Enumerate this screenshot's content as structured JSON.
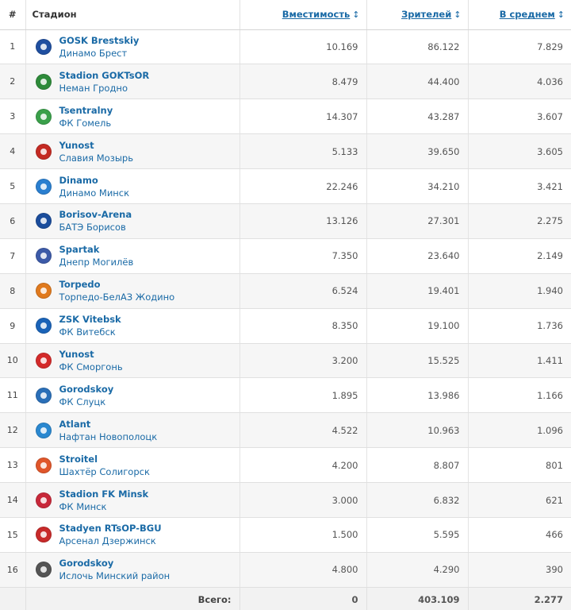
{
  "header": {
    "num": "#",
    "stadium": "Стадион",
    "capacity": "Вместимость",
    "attendance": "Зрителей",
    "average": "В среднем",
    "sort_icon": "↕"
  },
  "rows": [
    {
      "rank": "1",
      "stadium": "GOSK Brestskiy",
      "club": "Динамо Брест",
      "capacity": "10.169",
      "attendance": "86.122",
      "average": "7.829",
      "crest": {
        "icon": "dinamo-brest-crest-icon",
        "color": "#1f4fa0"
      }
    },
    {
      "rank": "2",
      "stadium": "Stadion GOKTsOR",
      "club": "Неман Гродно",
      "capacity": "8.479",
      "attendance": "44.400",
      "average": "4.036",
      "crest": {
        "icon": "neman-grodno-crest-icon",
        "color": "#2e8b3a"
      }
    },
    {
      "rank": "3",
      "stadium": "Tsentralny",
      "club": "ФК Гомель",
      "capacity": "14.307",
      "attendance": "43.287",
      "average": "3.607",
      "crest": {
        "icon": "fc-gomel-crest-icon",
        "color": "#3aa04a"
      }
    },
    {
      "rank": "4",
      "stadium": "Yunost",
      "club": "Славия Мозырь",
      "capacity": "5.133",
      "attendance": "39.650",
      "average": "3.605",
      "crest": {
        "icon": "slavia-mozyr-crest-icon",
        "color": "#c42a23"
      }
    },
    {
      "rank": "5",
      "stadium": "Dinamo",
      "club": "Динамо Минск",
      "capacity": "22.246",
      "attendance": "34.210",
      "average": "3.421",
      "crest": {
        "icon": "dinamo-minsk-crest-icon",
        "color": "#2a7fd0"
      }
    },
    {
      "rank": "6",
      "stadium": "Borisov-Arena",
      "club": "БАТЭ Борисов",
      "capacity": "13.126",
      "attendance": "27.301",
      "average": "2.275",
      "crest": {
        "icon": "bate-borisov-crest-icon",
        "color": "#1b4d9c"
      }
    },
    {
      "rank": "7",
      "stadium": "Spartak",
      "club": "Днепр Могилёв",
      "capacity": "7.350",
      "attendance": "23.640",
      "average": "2.149",
      "crest": {
        "icon": "dnepr-mogilev-crest-icon",
        "color": "#3c5aa8"
      }
    },
    {
      "rank": "8",
      "stadium": "Torpedo",
      "club": "Торпедо-БелАЗ Жодино",
      "capacity": "6.524",
      "attendance": "19.401",
      "average": "1.940",
      "crest": {
        "icon": "torpedo-belaz-crest-icon",
        "color": "#e07a1e"
      }
    },
    {
      "rank": "9",
      "stadium": "ZSK Vitebsk",
      "club": "ФК Витебск",
      "capacity": "8.350",
      "attendance": "19.100",
      "average": "1.736",
      "crest": {
        "icon": "fc-vitebsk-crest-icon",
        "color": "#1a63b8"
      }
    },
    {
      "rank": "10",
      "stadium": "Yunost",
      "club": "ФК Сморгонь",
      "capacity": "3.200",
      "attendance": "15.525",
      "average": "1.411",
      "crest": {
        "icon": "fc-smorgon-crest-icon",
        "color": "#d32a2a"
      }
    },
    {
      "rank": "11",
      "stadium": "Gorodskoy",
      "club": "ФК Слуцк",
      "capacity": "1.895",
      "attendance": "13.986",
      "average": "1.166",
      "crest": {
        "icon": "fc-slutsk-crest-icon",
        "color": "#2a6fb8"
      }
    },
    {
      "rank": "12",
      "stadium": "Atlant",
      "club": "Нафтан Новополоцк",
      "capacity": "4.522",
      "attendance": "10.963",
      "average": "1.096",
      "crest": {
        "icon": "naftan-crest-icon",
        "color": "#2a88d0"
      }
    },
    {
      "rank": "13",
      "stadium": "Stroitel",
      "club": "Шахтёр Солигорск",
      "capacity": "4.200",
      "attendance": "8.807",
      "average": "801",
      "crest": {
        "icon": "shakhtyor-crest-icon",
        "color": "#e0562a"
      }
    },
    {
      "rank": "14",
      "stadium": "Stadion FK Minsk",
      "club": "ФК Минск",
      "capacity": "3.000",
      "attendance": "6.832",
      "average": "621",
      "crest": {
        "icon": "fc-minsk-crest-icon",
        "color": "#c8283a"
      }
    },
    {
      "rank": "15",
      "stadium": "Stadyen RTsOP-BGU",
      "club": "Арсенал Дзержинск",
      "capacity": "1.500",
      "attendance": "5.595",
      "average": "466",
      "crest": {
        "icon": "arsenal-dzerzhinsk-crest-icon",
        "color": "#c82a2a"
      }
    },
    {
      "rank": "16",
      "stadium": "Gorodskoy",
      "club": "Ислочь Минский район",
      "capacity": "4.800",
      "attendance": "4.290",
      "average": "390",
      "crest": {
        "icon": "isloch-crest-icon",
        "color": "#555555"
      }
    }
  ],
  "footer": {
    "label": "Всего:",
    "capacity": "0",
    "attendance": "403.109",
    "average": "2.277"
  }
}
